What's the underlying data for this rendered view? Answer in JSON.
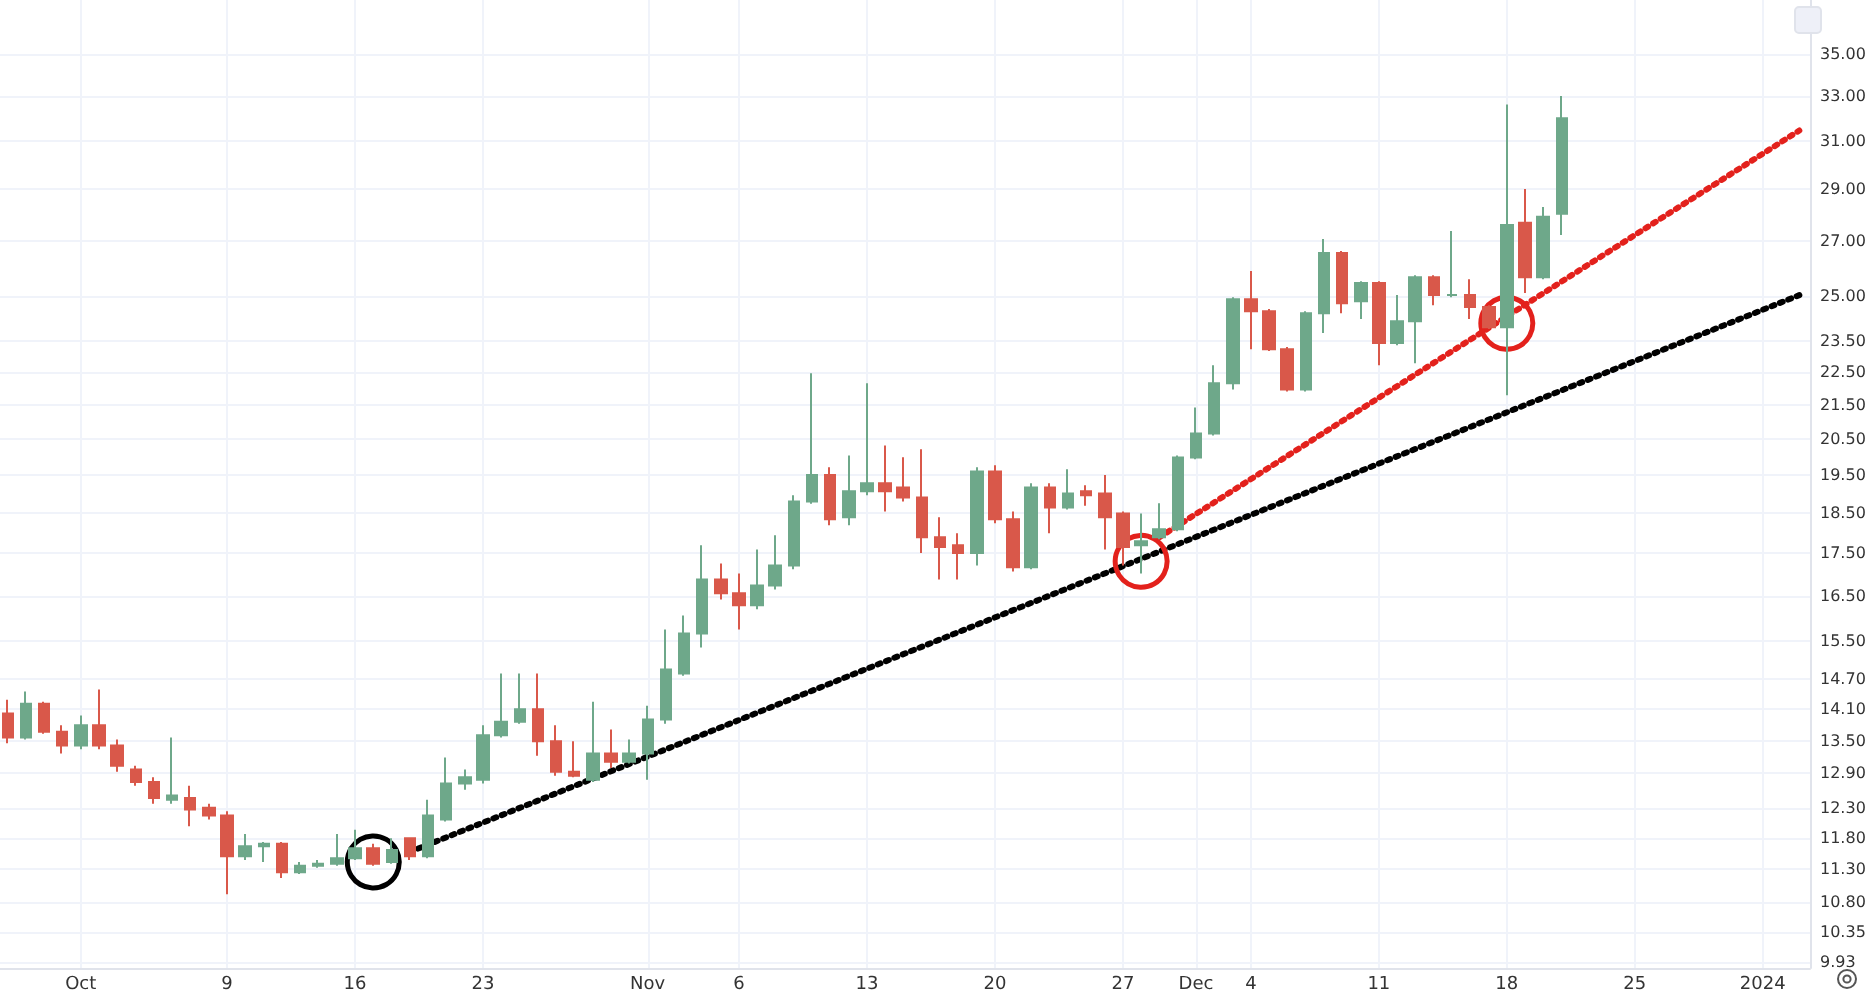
{
  "chart_data": {
    "type": "candlestick",
    "x": [
      "2023-09-27",
      "2023-09-28",
      "2023-09-29",
      "2023-09-30",
      "2023-10-01",
      "2023-10-02",
      "2023-10-03",
      "2023-10-04",
      "2023-10-05",
      "2023-10-06",
      "2023-10-07",
      "2023-10-08",
      "2023-10-09",
      "2023-10-10",
      "2023-10-11",
      "2023-10-12",
      "2023-10-13",
      "2023-10-14",
      "2023-10-15",
      "2023-10-16",
      "2023-10-17",
      "2023-10-18",
      "2023-10-19",
      "2023-10-20",
      "2023-10-21",
      "2023-10-22",
      "2023-10-23",
      "2023-10-24",
      "2023-10-25",
      "2023-10-26",
      "2023-10-27",
      "2023-10-28",
      "2023-10-29",
      "2023-10-30",
      "2023-10-31",
      "2023-11-01",
      "2023-11-02",
      "2023-11-03",
      "2023-11-04",
      "2023-11-05",
      "2023-11-06",
      "2023-11-07",
      "2023-11-08",
      "2023-11-09",
      "2023-11-10",
      "2023-11-11",
      "2023-11-12",
      "2023-11-13",
      "2023-11-14",
      "2023-11-15",
      "2023-11-16",
      "2023-11-17",
      "2023-11-18",
      "2023-11-19",
      "2023-11-20",
      "2023-11-21",
      "2023-11-22",
      "2023-11-23",
      "2023-11-24",
      "2023-11-25",
      "2023-11-26",
      "2023-11-27",
      "2023-11-28",
      "2023-11-29",
      "2023-11-30",
      "2023-12-01",
      "2023-12-02",
      "2023-12-03",
      "2023-12-04",
      "2023-12-05",
      "2023-12-06",
      "2023-12-07",
      "2023-12-08",
      "2023-12-09",
      "2023-12-10",
      "2023-12-11",
      "2023-12-12",
      "2023-12-13",
      "2023-12-14",
      "2023-12-15",
      "2023-12-16",
      "2023-12-17",
      "2023-12-18",
      "2023-12-19",
      "2023-12-20",
      "2023-12-21"
    ],
    "ohlc": [
      [
        14.02,
        14.29,
        13.45,
        13.56
      ],
      [
        13.56,
        14.45,
        13.52,
        14.21
      ],
      [
        14.21,
        14.25,
        13.63,
        13.67
      ],
      [
        13.67,
        13.79,
        13.26,
        13.41
      ],
      [
        13.41,
        13.98,
        13.34,
        13.79
      ],
      [
        13.79,
        14.49,
        13.34,
        13.41
      ],
      [
        13.41,
        13.52,
        12.93,
        13.04
      ],
      [
        12.97,
        13.04,
        12.68,
        12.75
      ],
      [
        12.75,
        12.83,
        12.37,
        12.47
      ],
      [
        12.44,
        13.56,
        12.37,
        12.51
      ],
      [
        12.47,
        12.68,
        11.99,
        12.27
      ],
      [
        12.3,
        12.37,
        12.1,
        12.17
      ],
      [
        12.17,
        12.24,
        10.91,
        11.5
      ],
      [
        11.5,
        11.86,
        11.44,
        11.66
      ],
      [
        11.66,
        11.73,
        11.41,
        11.7
      ],
      [
        11.7,
        11.73,
        11.16,
        11.25
      ],
      [
        11.25,
        11.41,
        11.22,
        11.35
      ],
      [
        11.35,
        11.44,
        11.32,
        11.38
      ],
      [
        11.38,
        11.86,
        11.35,
        11.47
      ],
      [
        11.47,
        11.93,
        11.44,
        11.63
      ],
      [
        11.63,
        11.7,
        11.35,
        11.38
      ],
      [
        11.41,
        11.79,
        11.38,
        11.6
      ],
      [
        11.79,
        11.79,
        11.44,
        11.5
      ],
      [
        11.5,
        12.44,
        11.47,
        12.17
      ],
      [
        12.1,
        13.19,
        12.07,
        12.72
      ],
      [
        12.72,
        12.97,
        12.61,
        12.83
      ],
      [
        12.79,
        13.79,
        12.72,
        13.6
      ],
      [
        13.6,
        14.82,
        13.56,
        13.86
      ],
      [
        13.86,
        14.82,
        13.82,
        14.1
      ],
      [
        14.1,
        14.82,
        13.22,
        13.49
      ],
      [
        13.49,
        13.79,
        12.86,
        12.93
      ],
      [
        12.93,
        13.49,
        12.83,
        12.86
      ],
      [
        12.79,
        14.25,
        12.75,
        13.26
      ],
      [
        13.26,
        13.71,
        13.0,
        13.11
      ],
      [
        13.11,
        13.52,
        13.08,
        13.26
      ],
      [
        13.26,
        14.17,
        12.79,
        13.9
      ],
      [
        13.9,
        15.75,
        13.82,
        14.9
      ],
      [
        14.82,
        16.06,
        14.77,
        15.66
      ],
      [
        15.66,
        17.7,
        15.36,
        16.88
      ],
      [
        16.88,
        17.26,
        16.42,
        16.56
      ],
      [
        16.56,
        17.02,
        15.75,
        16.29
      ],
      [
        16.29,
        17.6,
        16.2,
        16.74
      ],
      [
        16.74,
        17.95,
        16.65,
        17.21
      ],
      [
        17.21,
        18.97,
        17.12,
        18.81
      ],
      [
        18.81,
        22.47,
        18.75,
        19.51
      ],
      [
        19.51,
        19.72,
        18.2,
        18.35
      ],
      [
        18.4,
        20.05,
        18.2,
        19.08
      ],
      [
        19.08,
        22.16,
        18.97,
        19.29
      ],
      [
        19.29,
        20.33,
        18.55,
        19.08
      ],
      [
        19.18,
        20.0,
        18.81,
        18.91
      ],
      [
        18.91,
        20.22,
        17.51,
        17.9
      ],
      [
        17.9,
        18.4,
        16.88,
        17.66
      ],
      [
        17.7,
        18.0,
        16.88,
        17.51
      ],
      [
        17.51,
        19.72,
        17.21,
        19.61
      ],
      [
        19.61,
        19.78,
        18.25,
        18.35
      ],
      [
        18.35,
        18.55,
        17.07,
        17.17
      ],
      [
        17.17,
        19.29,
        17.12,
        19.18
      ],
      [
        19.18,
        19.29,
        18.0,
        18.65
      ],
      [
        18.65,
        19.67,
        18.6,
        19.02
      ],
      [
        19.08,
        19.24,
        18.7,
        18.97
      ],
      [
        19.02,
        19.51,
        17.6,
        18.4
      ],
      [
        18.5,
        18.55,
        17.21,
        17.66
      ],
      [
        17.7,
        18.5,
        17.02,
        17.8
      ],
      [
        17.9,
        18.76,
        17.85,
        18.1
      ],
      [
        18.1,
        20.05,
        18.05,
        19.99
      ],
      [
        19.99,
        21.43,
        19.94,
        20.67
      ],
      [
        20.67,
        22.72,
        20.61,
        22.16
      ],
      [
        22.16,
        24.97,
        21.97,
        24.9
      ],
      [
        24.9,
        25.89,
        23.23,
        24.49
      ],
      [
        24.49,
        24.56,
        23.17,
        23.23
      ],
      [
        23.23,
        23.3,
        21.91,
        21.97
      ],
      [
        21.97,
        24.49,
        21.91,
        24.42
      ],
      [
        24.42,
        27.07,
        23.76,
        26.55
      ],
      [
        26.55,
        26.62,
        24.42,
        24.76
      ],
      [
        24.83,
        25.53,
        24.22,
        25.46
      ],
      [
        25.46,
        25.53,
        22.72,
        23.43
      ],
      [
        23.43,
        25.04,
        23.36,
        24.15
      ],
      [
        24.15,
        25.74,
        22.78,
        25.67
      ],
      [
        25.67,
        25.74,
        24.69,
        25.04
      ],
      [
        25.04,
        27.37,
        24.97,
        25.04
      ],
      [
        25.04,
        25.6,
        24.22,
        24.63
      ],
      [
        24.63,
        24.69,
        23.89,
        23.95
      ],
      [
        23.95,
        32.62,
        21.79,
        27.6
      ],
      [
        27.68,
        29.01,
        25.11,
        25.67
      ],
      [
        25.67,
        28.29,
        25.6,
        27.91
      ],
      [
        28.03,
        33.0,
        27.22,
        32.0
      ]
    ],
    "colors": [
      "#d9584a",
      "#6ea88a",
      "#d9584a",
      "#d9584a",
      "#6ea88a",
      "#d9584a",
      "#d9584a",
      "#d9584a",
      "#d9584a",
      "#6ea88a",
      "#d9584a",
      "#d9584a",
      "#d9584a",
      "#6ea88a",
      "#6ea88a",
      "#d9584a",
      "#6ea88a",
      "#6ea88a",
      "#6ea88a",
      "#6ea88a",
      "#d9584a",
      "#6ea88a",
      "#d9584a",
      "#6ea88a",
      "#6ea88a",
      "#6ea88a",
      "#6ea88a",
      "#6ea88a",
      "#6ea88a",
      "#d9584a",
      "#d9584a",
      "#d9584a",
      "#6ea88a",
      "#d9584a",
      "#6ea88a",
      "#6ea88a",
      "#6ea88a",
      "#6ea88a",
      "#6ea88a",
      "#d9584a",
      "#d9584a",
      "#6ea88a",
      "#6ea88a",
      "#6ea88a",
      "#6ea88a",
      "#d9584a",
      "#6ea88a",
      "#6ea88a",
      "#d9584a",
      "#d9584a",
      "#d9584a",
      "#d9584a",
      "#d9584a",
      "#6ea88a",
      "#d9584a",
      "#d9584a",
      "#6ea88a",
      "#d9584a",
      "#6ea88a",
      "#d9584a",
      "#d9584a",
      "#d9584a",
      "#6ea88a",
      "#6ea88a",
      "#6ea88a",
      "#6ea88a",
      "#6ea88a",
      "#6ea88a",
      "#d9584a",
      "#d9584a",
      "#d9584a",
      "#6ea88a",
      "#6ea88a",
      "#d9584a",
      "#6ea88a",
      "#d9584a",
      "#6ea88a",
      "#6ea88a",
      "#d9584a",
      "#6ea88a",
      "#d9584a",
      "#d9584a",
      "#6ea88a",
      "#d9584a",
      "#6ea88a",
      "#6ea88a"
    ],
    "series": [
      {
        "type": "line",
        "color": "#000000",
        "x": [
          "2023-10-19",
          "2024-01-03"
        ],
        "values": [
          11.57,
          25.04
        ],
        "line_style": "dotted",
        "marker": "none"
      },
      {
        "type": "line",
        "color": "#e3211c",
        "x": [
          "2023-11-29",
          "2024-01-03"
        ],
        "values": [
          17.9,
          31.46
        ],
        "line_style": "dotted",
        "marker": "none"
      },
      {
        "type": "scatter",
        "color": "#000000",
        "x": [
          "2023-10-17"
        ],
        "values": [
          11.41
        ],
        "marker": "circle"
      },
      {
        "type": "scatter",
        "color": "#e3211c",
        "x": [
          "2023-11-28",
          "2023-12-18"
        ],
        "values": [
          17.31,
          24.08
        ],
        "marker": "circle"
      }
    ],
    "log": true,
    "xlim": [
      "2023-09-26T14:00",
      "2024-01-03T14:00"
    ],
    "xticks": [
      {
        "value": "2023-10-01",
        "label": "Oct"
      },
      {
        "value": "2023-10-09",
        "label": "9"
      },
      {
        "value": "2023-10-16",
        "label": "16"
      },
      {
        "value": "2023-10-23",
        "label": "23"
      },
      {
        "value": "2023-11-01",
        "label": "Nov"
      },
      {
        "value": "2023-11-06",
        "label": "6"
      },
      {
        "value": "2023-11-13",
        "label": "13"
      },
      {
        "value": "2023-11-20",
        "label": "20"
      },
      {
        "value": "2023-11-27",
        "label": "27"
      },
      {
        "value": "2023-12-01",
        "label": "Dec"
      },
      {
        "value": "2023-12-04",
        "label": "4"
      },
      {
        "value": "2023-12-11",
        "label": "11"
      },
      {
        "value": "2023-12-18",
        "label": "18"
      },
      {
        "value": "2023-12-25",
        "label": "25"
      },
      {
        "value": "2024-01-01",
        "label": "2024"
      }
    ],
    "ylim": [
      9.85,
      37.7
    ],
    "yticks": [
      {
        "value": 9.93,
        "label": "9.93"
      },
      {
        "value": 10.35,
        "label": "10.35"
      },
      {
        "value": 10.8,
        "label": "10.80"
      },
      {
        "value": 11.3,
        "label": "11.30"
      },
      {
        "value": 11.8,
        "label": "11.80"
      },
      {
        "value": 12.3,
        "label": "12.30"
      },
      {
        "value": 12.9,
        "label": "12.90"
      },
      {
        "value": 13.5,
        "label": "13.50"
      },
      {
        "value": 14.1,
        "label": "14.10"
      },
      {
        "value": 14.7,
        "label": "14.70"
      },
      {
        "value": 15.5,
        "label": "15.50"
      },
      {
        "value": 16.5,
        "label": "16.50"
      },
      {
        "value": 17.5,
        "label": "17.50"
      },
      {
        "value": 18.5,
        "label": "18.50"
      },
      {
        "value": 19.5,
        "label": "19.50"
      },
      {
        "value": 20.5,
        "label": "20.50"
      },
      {
        "value": 21.5,
        "label": "21.50"
      },
      {
        "value": 22.5,
        "label": "22.50"
      },
      {
        "value": 23.5,
        "label": "23.50"
      },
      {
        "value": 25,
        "label": "25.00"
      },
      {
        "value": 27,
        "label": "27.00"
      },
      {
        "value": 29,
        "label": "29.00"
      },
      {
        "value": 31,
        "label": "31.00"
      },
      {
        "value": 33,
        "label": "33.00"
      },
      {
        "value": 35,
        "label": "35.00"
      }
    ],
    "grid": true
  }
}
